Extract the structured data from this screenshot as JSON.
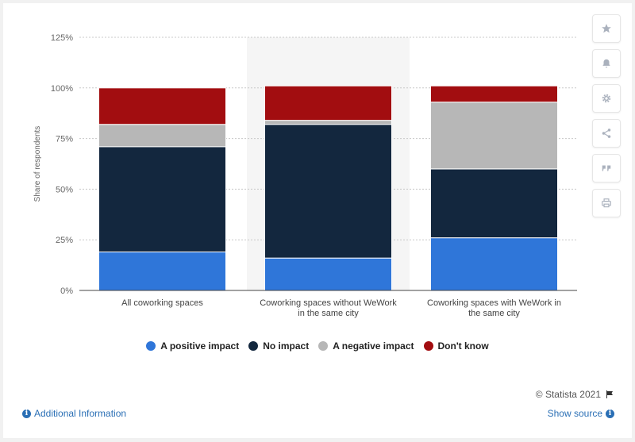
{
  "chart_data": {
    "type": "bar",
    "stacked": true,
    "categories": [
      [
        "All coworking spaces"
      ],
      [
        "Coworking spaces without WeWork",
        "in the same city"
      ],
      [
        "Coworking spaces with WeWork in",
        "the same city"
      ]
    ],
    "series": [
      {
        "name": "A positive impact",
        "color": "#2f76d9",
        "values": [
          19,
          16,
          26
        ]
      },
      {
        "name": "No impact",
        "color": "#13273e",
        "values": [
          52,
          66,
          34
        ]
      },
      {
        "name": "A negative impact",
        "color": "#b7b7b7",
        "values": [
          11,
          2,
          33
        ]
      },
      {
        "name": "Don't know",
        "color": "#a20d10",
        "values": [
          18,
          17,
          8
        ]
      }
    ],
    "ylabel": "Share of respondents",
    "ylim": [
      0,
      125
    ],
    "yticks": [
      "0%",
      "25%",
      "50%",
      "75%",
      "100%",
      "125%"
    ],
    "grid": true,
    "legend_position": "bottom",
    "highlighted_category": 1
  },
  "legend": {
    "items": [
      {
        "label": "A positive impact",
        "color": "#2f76d9"
      },
      {
        "label": "No impact",
        "color": "#13273e"
      },
      {
        "label": "A negative impact",
        "color": "#b7b7b7"
      },
      {
        "label": "Don't know",
        "color": "#a20d10"
      }
    ]
  },
  "toolbar": {
    "icons": [
      "star-icon",
      "bell-icon",
      "gear-icon",
      "share-icon",
      "quote-icon",
      "print-icon"
    ]
  },
  "footer": {
    "credit": "© Statista 2021",
    "additional_info": "Additional Information",
    "show_source": "Show source"
  }
}
